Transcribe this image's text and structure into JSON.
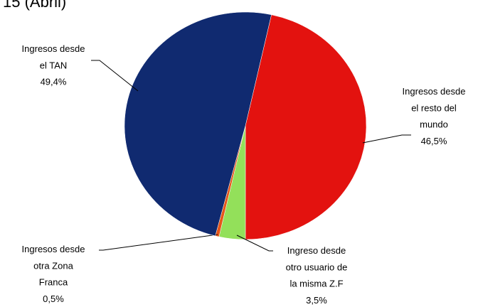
{
  "chart_data": {
    "type": "pie",
    "title": "15 (Abril)",
    "categories": [
      "Ingresos desde el resto del mundo",
      "Ingreso desde otro usuario de la misma Z.F",
      "Ingresos desde otra Zona Franca",
      "Ingresos desde el TAN"
    ],
    "values": [
      46.5,
      3.5,
      0.5,
      49.4
    ],
    "value_labels": [
      "46,5%",
      "3,5%",
      "0,5%",
      "49,4%"
    ],
    "colors": [
      "#e3120f",
      "#93e05a",
      "#e5561a",
      "#102a70"
    ]
  }
}
